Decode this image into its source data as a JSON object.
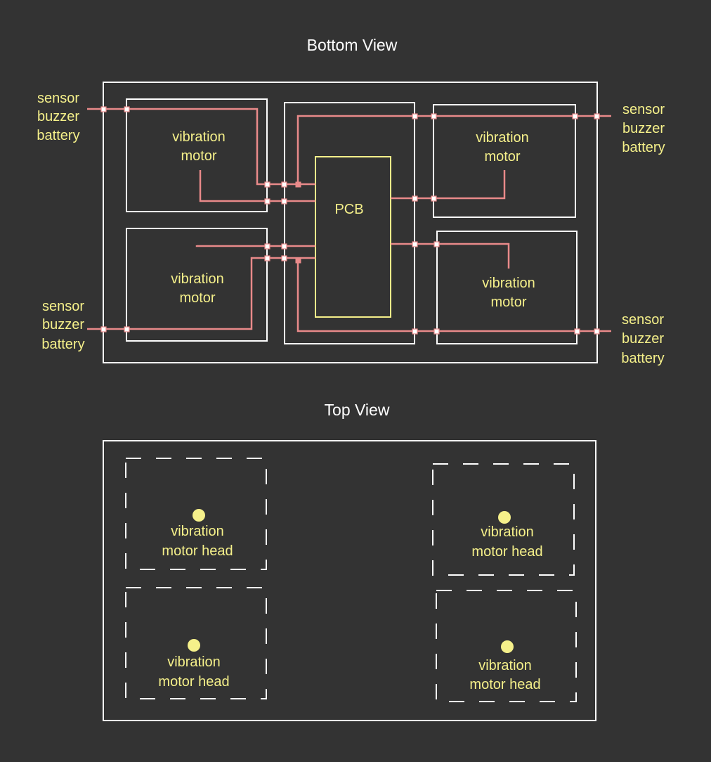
{
  "bottom_view": {
    "title": "Bottom View",
    "pcb_label": "PCB",
    "motors": [
      {
        "line1": "vibration",
        "line2": "motor"
      },
      {
        "line1": "vibration",
        "line2": "motor"
      },
      {
        "line1": "vibration",
        "line2": "motor"
      },
      {
        "line1": "vibration",
        "line2": "motor"
      }
    ],
    "side_labels": [
      {
        "l1": "sensor",
        "l2": "buzzer",
        "l3": "battery"
      },
      {
        "l1": "sensor",
        "l2": "buzzer",
        "l3": "battery"
      },
      {
        "l1": "sensor",
        "l2": "buzzer",
        "l3": "battery"
      },
      {
        "l1": "sensor",
        "l2": "buzzer",
        "l3": "battery"
      }
    ]
  },
  "top_view": {
    "title": "Top View",
    "heads": [
      {
        "line1": "vibration",
        "line2": "motor head"
      },
      {
        "line1": "vibration",
        "line2": "motor head"
      },
      {
        "line1": "vibration",
        "line2": "motor head"
      },
      {
        "line1": "vibration",
        "line2": "motor head"
      }
    ]
  },
  "colors": {
    "background": "#333333",
    "outline": "#ffffff",
    "label": "#f5f08a",
    "wire": "#e98a8a"
  }
}
